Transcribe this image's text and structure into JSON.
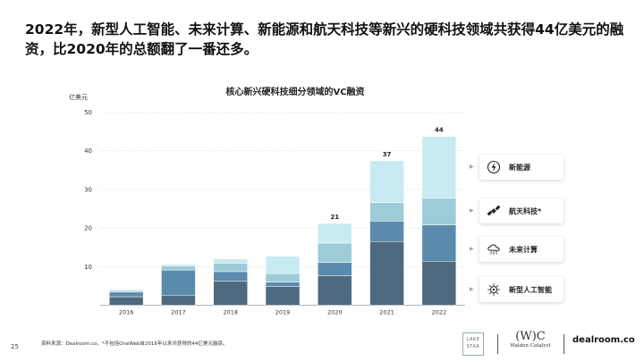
{
  "headline": "2022年，新型人工智能、未来计算、新能源和航天科技等新兴的硬科技领域共获得44亿美元的融资，比2020年的总额翻了一番还多。",
  "page_number": "25",
  "source_note": "资料来源：Dealroom.co，*不包括OneWeb自2016年以来共获得的44亿美元融资。",
  "logos": {
    "lake_star": [
      "LAKE",
      "STAR"
    ],
    "walden_mark": "(W)C",
    "walden_name": "Walden Catalyst",
    "dealroom": "dealroom.co"
  },
  "colors": {
    "new_energy": "#c8ebf1",
    "aerospace": "#9dcbd8",
    "future_computing": "#5b8bac",
    "ai": "#4f6a7e",
    "accent_arrow": "#9aa6b0"
  },
  "legend": [
    {
      "label": "新能源",
      "icon": "lightning-icon"
    },
    {
      "label": "航天科技*",
      "icon": "satellite-icon"
    },
    {
      "label": "未来计算",
      "icon": "cloud-computing-icon"
    },
    {
      "label": "新型人工智能",
      "icon": "ai-chip-icon"
    }
  ],
  "chart_data": {
    "type": "bar",
    "stacked": true,
    "title": "核心新兴硬科技细分领域的VC融资",
    "ylabel": "亿美元",
    "ylim": [
      0,
      50
    ],
    "yticks": [
      10,
      20,
      30,
      40,
      50
    ],
    "categories": [
      "2016",
      "2017",
      "2018",
      "2019",
      "2020",
      "2021",
      "2022"
    ],
    "totals_labels": [
      "",
      "",
      "",
      "",
      "21",
      "37",
      "44"
    ],
    "series": [
      {
        "name": "新型人工智能",
        "values": [
          2.2,
          2.6,
          6.2,
          4.9,
          7.6,
          16.5,
          11.4
        ]
      },
      {
        "name": "未来计算",
        "values": [
          1.2,
          6.5,
          2.5,
          1.1,
          3.5,
          5.3,
          9.4
        ]
      },
      {
        "name": "航天科技*",
        "values": [
          0.4,
          1.1,
          2.2,
          2.2,
          5.0,
          4.8,
          6.9
        ]
      },
      {
        "name": "新能源",
        "values": [
          0.3,
          0.4,
          1.1,
          4.5,
          5.1,
          10.8,
          16.0
        ]
      }
    ]
  }
}
